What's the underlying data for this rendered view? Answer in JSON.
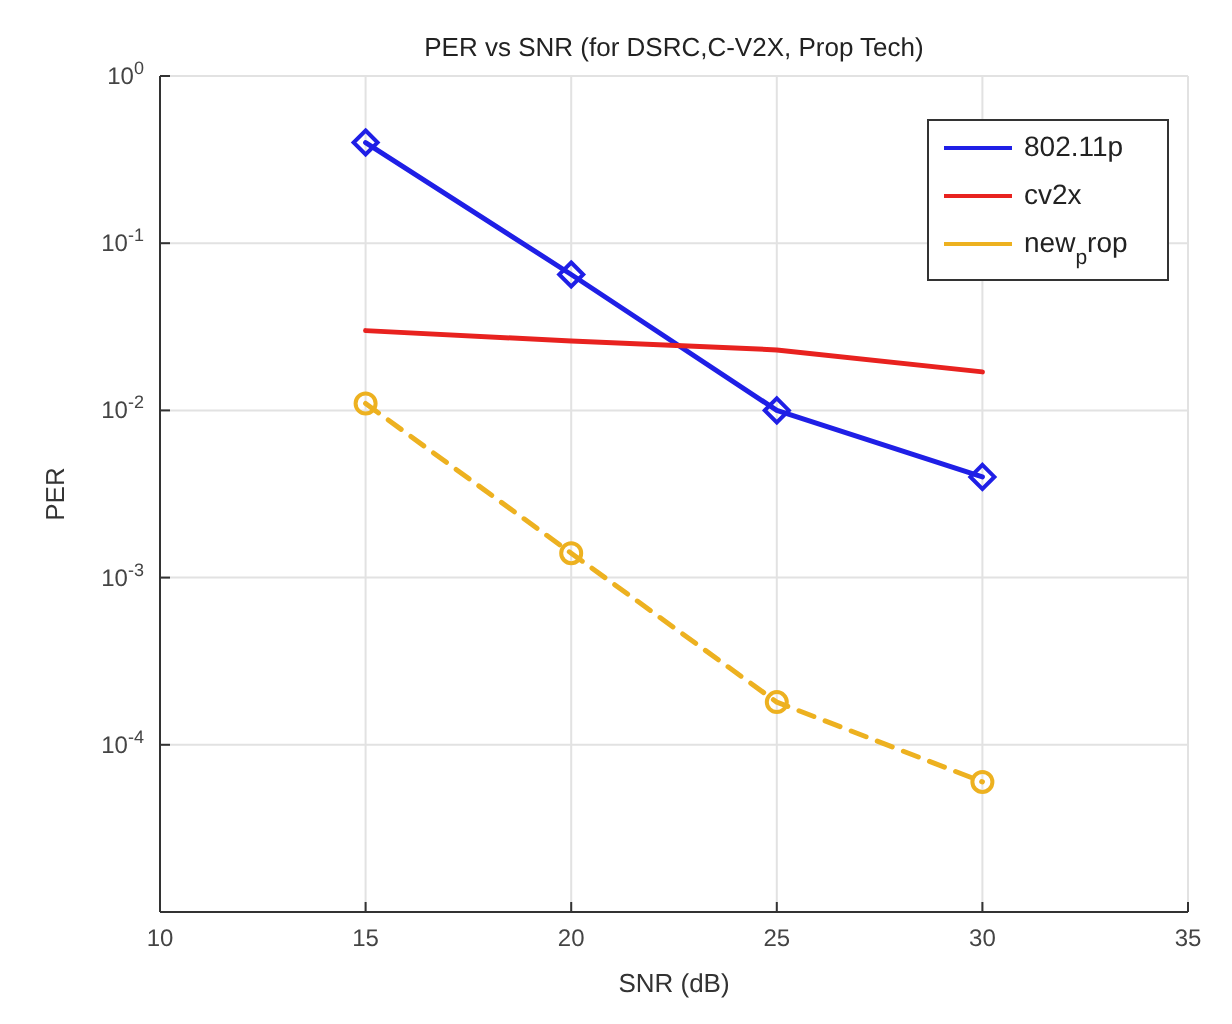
{
  "chart_data": {
    "type": "line",
    "title": "PER vs SNR (for DSRC,C-V2X, Prop Tech)",
    "xlabel": "SNR (dB)",
    "ylabel": "PER",
    "x": [
      15,
      20,
      25,
      30
    ],
    "series": [
      {
        "name": "802.11p",
        "color": "#1f1fe6",
        "values": [
          0.4,
          0.065,
          0.01,
          0.004
        ],
        "marker": "diamond",
        "line_style": "solid"
      },
      {
        "name": "cv2x",
        "color": "#e8221f",
        "values": [
          0.03,
          0.026,
          0.023,
          0.017
        ],
        "marker": "none",
        "line_style": "solid"
      },
      {
        "name": "new$_{p}$rop",
        "color": "#edb120",
        "values": [
          0.011,
          0.0014,
          0.00018,
          6e-05
        ],
        "marker": "circle",
        "line_style": "dashed"
      }
    ],
    "log": "y",
    "xlim": [
      10,
      35
    ],
    "xticks": [
      10,
      15,
      20,
      25,
      30,
      35
    ],
    "ylim": [
      1e-05,
      1
    ],
    "yticks": [
      {
        "value": 0.0001,
        "label": "10$^{-4}$"
      },
      {
        "value": 0.001,
        "label": "10$^{-3}$"
      },
      {
        "value": 0.01,
        "label": "10$^{-2}$"
      },
      {
        "value": 0.1,
        "label": "10$^{-1}$"
      },
      {
        "value": 1,
        "label": "10$^{0}$"
      }
    ],
    "grid": true,
    "legend": "top right"
  }
}
